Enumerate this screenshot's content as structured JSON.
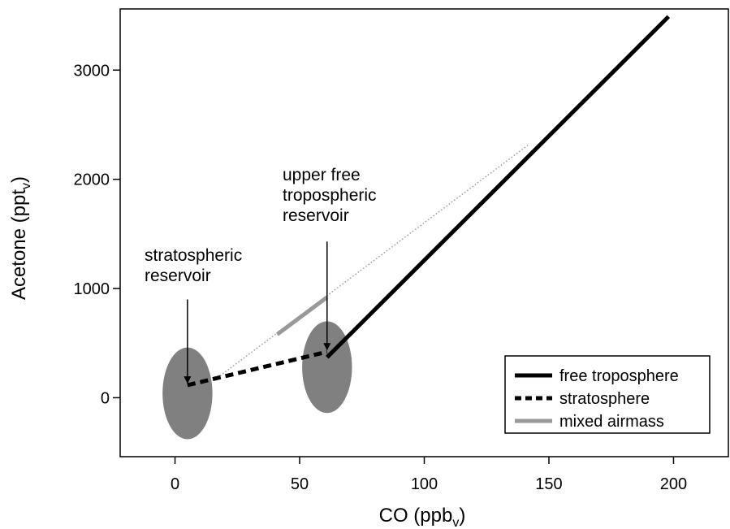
{
  "chart_data": {
    "type": "line",
    "xlabel": {
      "main": "CO (ppb",
      "sub": "v",
      "close": ")"
    },
    "ylabel": {
      "main": "Acetone (ppt",
      "sub": "v",
      "close": ")"
    },
    "xlim": [
      -22,
      222
    ],
    "ylim": [
      -540,
      3560
    ],
    "xticks": [
      0,
      50,
      100,
      150,
      200
    ],
    "yticks": [
      0,
      1000,
      2000,
      3000
    ],
    "grid": false,
    "legend_position": "bottom-right",
    "colors": {
      "free_troposphere": "#000000",
      "stratosphere": "#000000",
      "mixed_airmass": "#999999",
      "mixing_line": "#999999",
      "reservoir": "#808080"
    },
    "series": [
      {
        "name": "free troposphere",
        "style": "solid-thick",
        "x": [
          61,
          198
        ],
        "y": [
          370,
          3490
        ]
      },
      {
        "name": "stratosphere",
        "style": "dashed-thick",
        "x": [
          5,
          61
        ],
        "y": [
          115,
          420
        ]
      },
      {
        "name": "mixed airmass",
        "style": "solid-gray",
        "x": [
          41,
          61
        ],
        "y": [
          580,
          920
        ]
      }
    ],
    "mixing_line": {
      "style": "dotted-gray",
      "x": [
        16,
        142
      ],
      "y": [
        165,
        2320
      ]
    },
    "reservoirs": [
      {
        "name": "stratospheric",
        "cx": 5,
        "cy": 40,
        "rx": 10,
        "ry": 420
      },
      {
        "name": "upper-free-tropospheric",
        "cx": 61,
        "cy": 280,
        "rx": 10,
        "ry": 420
      }
    ],
    "annotations": [
      {
        "id": "stratospheric-reservoir",
        "lines": [
          "stratospheric",
          "reservoir"
        ],
        "arrow_from": [
          5,
          900
        ],
        "arrow_to": [
          5,
          135
        ]
      },
      {
        "id": "upper-free-tropospheric-reservoir",
        "lines": [
          "upper free",
          "tropospheric",
          "reservoir"
        ],
        "arrow_from": [
          61,
          1430
        ],
        "arrow_to": [
          61,
          440
        ]
      }
    ]
  }
}
